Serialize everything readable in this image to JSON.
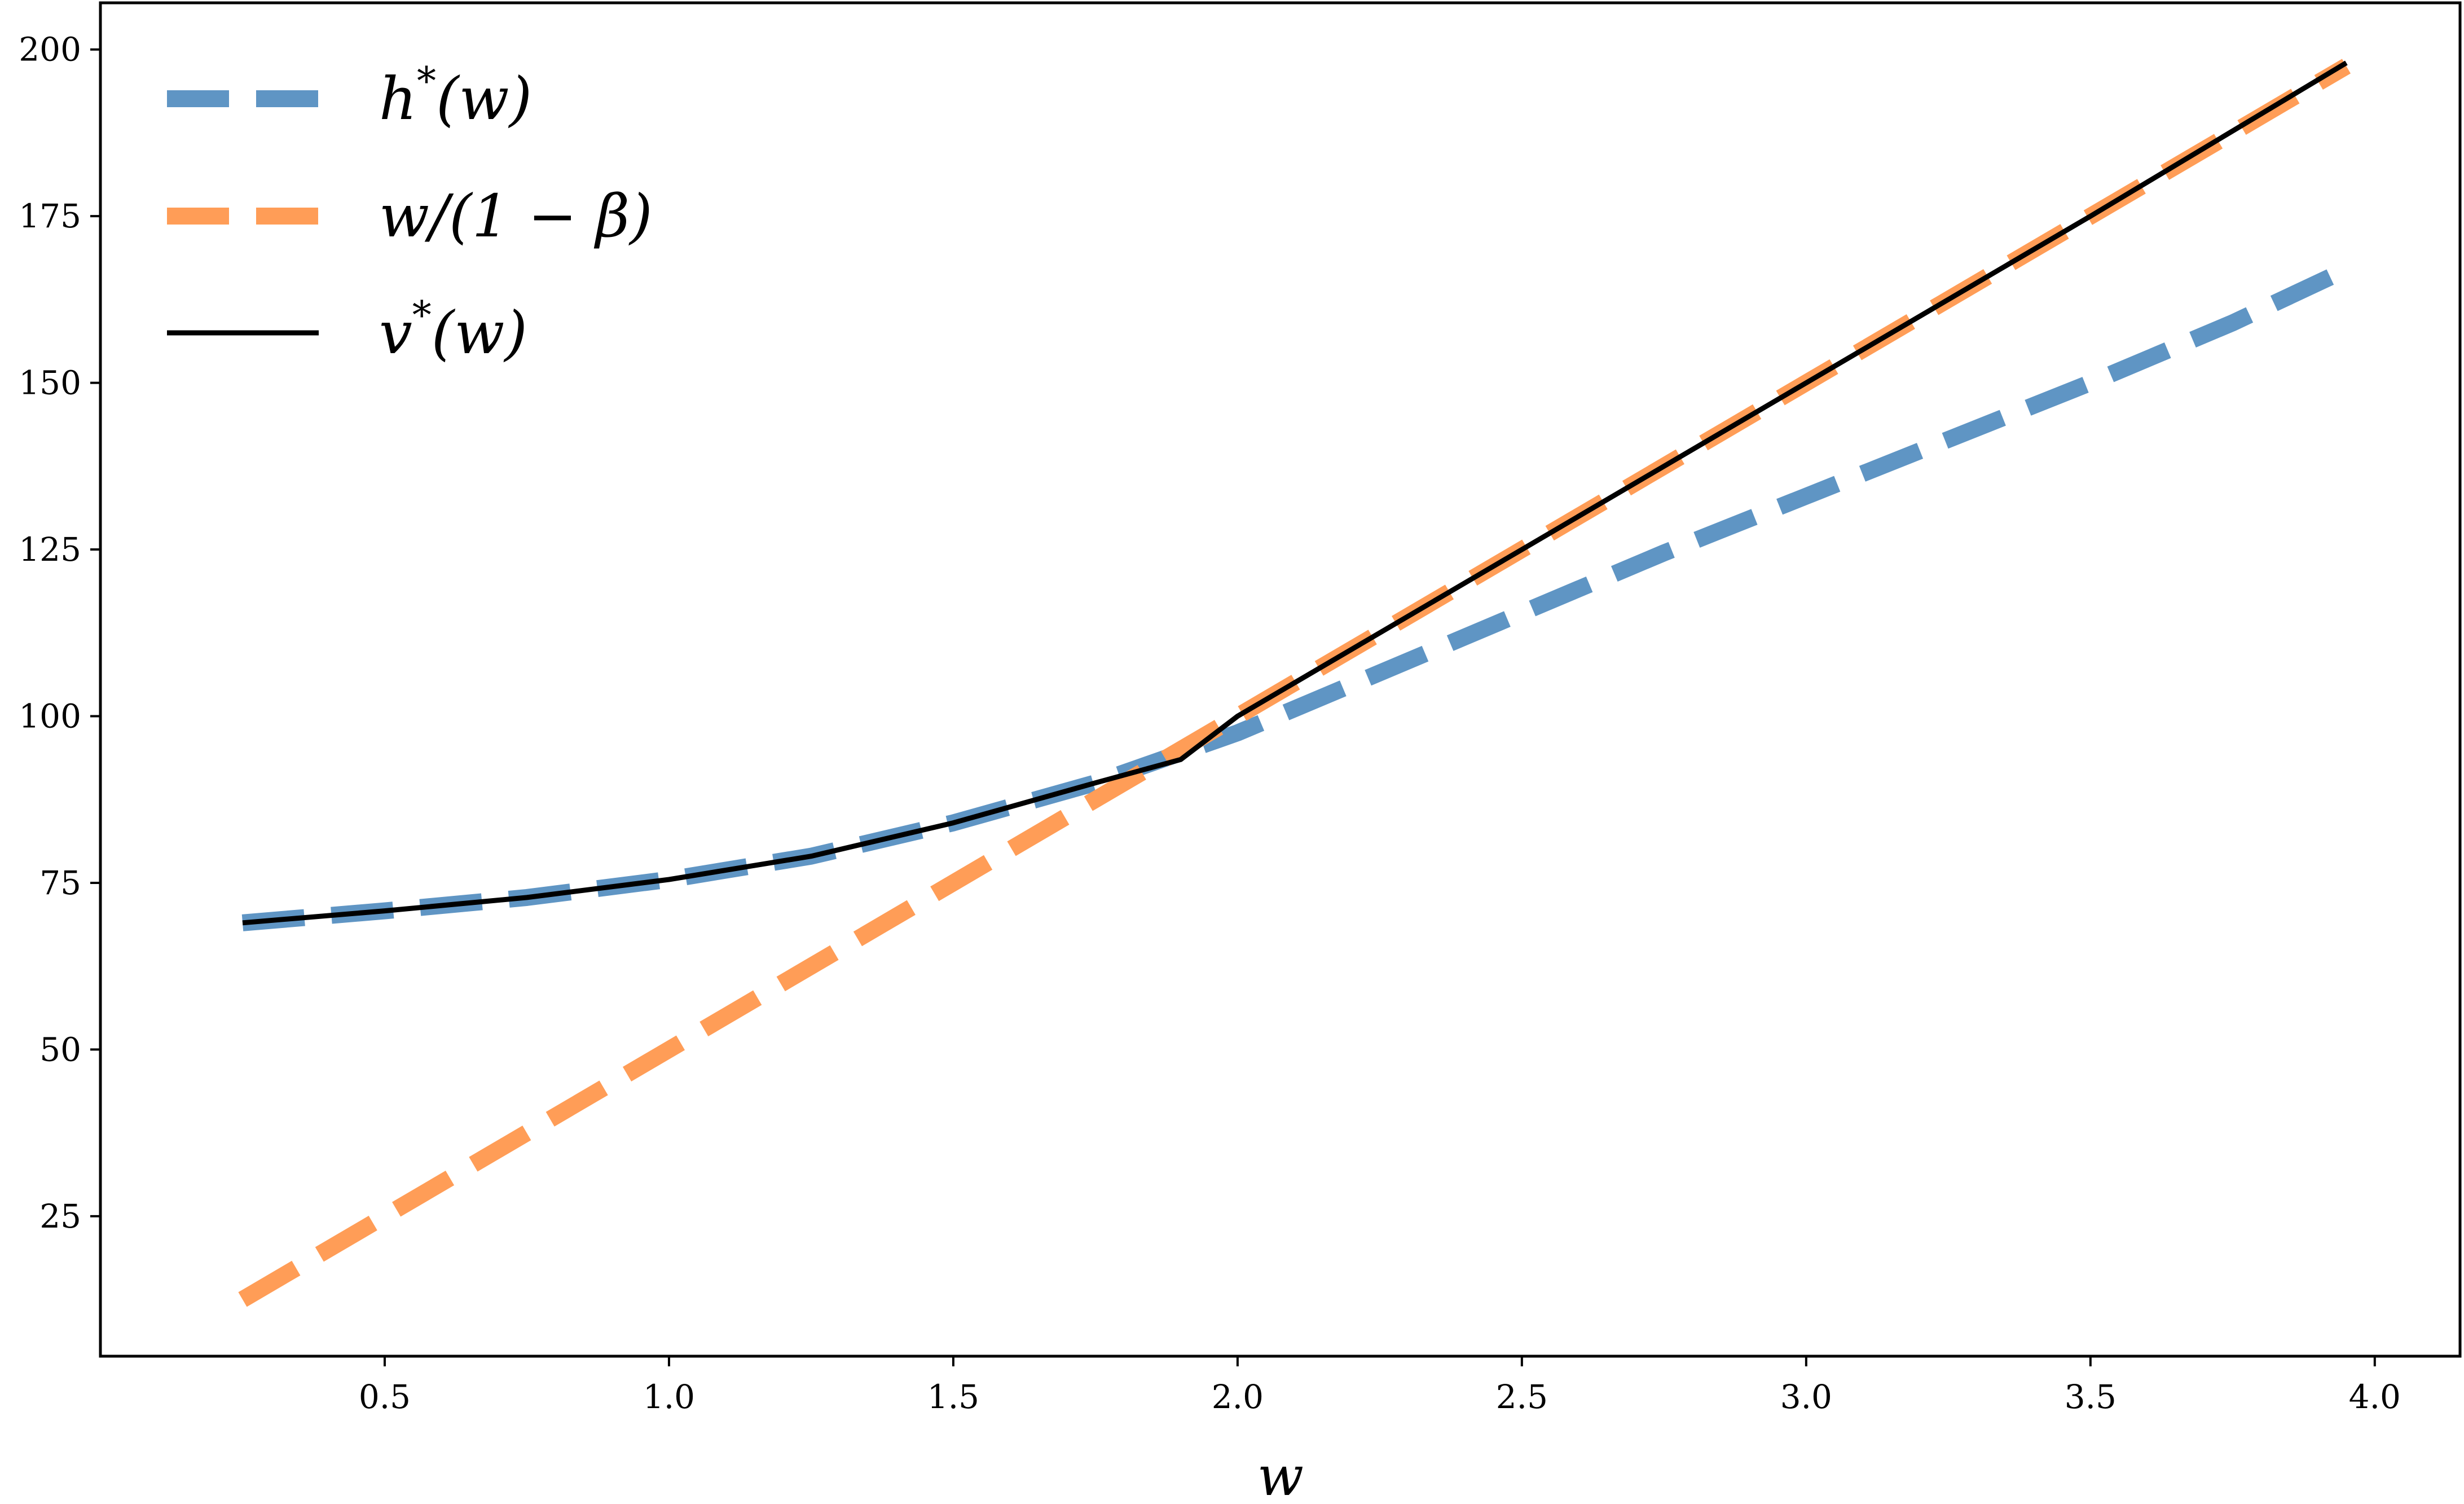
{
  "chart_data": {
    "type": "line",
    "xlabel": "w",
    "ylabel": "",
    "title": "",
    "xlim": [
      0.0,
      4.15
    ],
    "ylim": [
      4.0,
      207.0
    ],
    "xticks": [
      0.5,
      1.0,
      1.5,
      2.0,
      2.5,
      3.0,
      3.5,
      4.0
    ],
    "xtick_labels": [
      "0.5",
      "1.0",
      "1.5",
      "2.0",
      "2.5",
      "3.0",
      "3.5",
      "4.0"
    ],
    "yticks": [
      25,
      50,
      75,
      100,
      125,
      150,
      175,
      200
    ],
    "ytick_labels": [
      "25",
      "50",
      "75",
      "100",
      "125",
      "150",
      "175",
      "200"
    ],
    "legend_position": "top-left",
    "grid": false,
    "series": [
      {
        "name": "h*(w)",
        "legend_label": {
          "base": "h",
          "sup": "*",
          "rest": "(w)"
        },
        "style": "dashed",
        "color": "#5f95c4",
        "x": [
          0.25,
          0.5,
          0.75,
          1.0,
          1.25,
          1.5,
          1.75,
          1.9,
          2.0,
          2.25,
          2.5,
          2.75,
          3.0,
          3.25,
          3.5,
          3.75,
          3.95
        ],
        "values": [
          69.0,
          70.8,
          72.8,
          75.5,
          79.0,
          84.0,
          90.0,
          94.5,
          97.5,
          106.5,
          115.5,
          124.5,
          133.0,
          141.5,
          150.0,
          159.0,
          167.0
        ]
      },
      {
        "name": "w/(1 − β)",
        "legend_label": {
          "base": "w/(1 − β)",
          "sup": "",
          "rest": ""
        },
        "style": "dashed",
        "color": "#ff9d57",
        "x": [
          0.25,
          0.5,
          1.0,
          1.5,
          2.0,
          2.5,
          3.0,
          3.5,
          3.95
        ],
        "values": [
          12.5,
          25.0,
          50.0,
          75.0,
          100.0,
          125.0,
          150.0,
          175.0,
          197.5
        ]
      },
      {
        "name": "v*(w)",
        "legend_label": {
          "base": "v",
          "sup": "*",
          "rest": "(w)"
        },
        "style": "solid",
        "color": "#000000",
        "x": [
          0.25,
          0.5,
          0.75,
          1.0,
          1.25,
          1.5,
          1.75,
          1.9,
          2.0,
          2.5,
          3.0,
          3.5,
          3.95
        ],
        "values": [
          69.0,
          70.8,
          72.8,
          75.5,
          79.0,
          84.0,
          90.0,
          93.5,
          100.0,
          125.0,
          150.0,
          175.0,
          198.0
        ]
      }
    ]
  }
}
